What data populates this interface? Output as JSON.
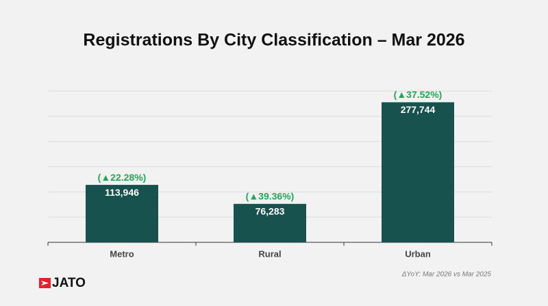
{
  "chart_data": {
    "type": "bar",
    "title": "Registrations By City Classification – Mar 2026",
    "categories": [
      "Metro",
      "Rural",
      "Urban"
    ],
    "values": [
      113946,
      76283,
      277744
    ],
    "value_labels": [
      "113,946",
      "76,283",
      "277,744"
    ],
    "change_labels": [
      "(▲22.28%)",
      "(▲39.36%)",
      "(▲37.52%)"
    ],
    "color": "#17524f",
    "change_color": "#1ea858",
    "ylim": [
      0,
      300000
    ],
    "yticks": [
      0,
      50000,
      100000,
      150000,
      200000,
      250000,
      300000
    ],
    "grid": true,
    "footnote": "ΔYoY: Mar 2026 vs Mar 2025",
    "brand": "JATO"
  }
}
